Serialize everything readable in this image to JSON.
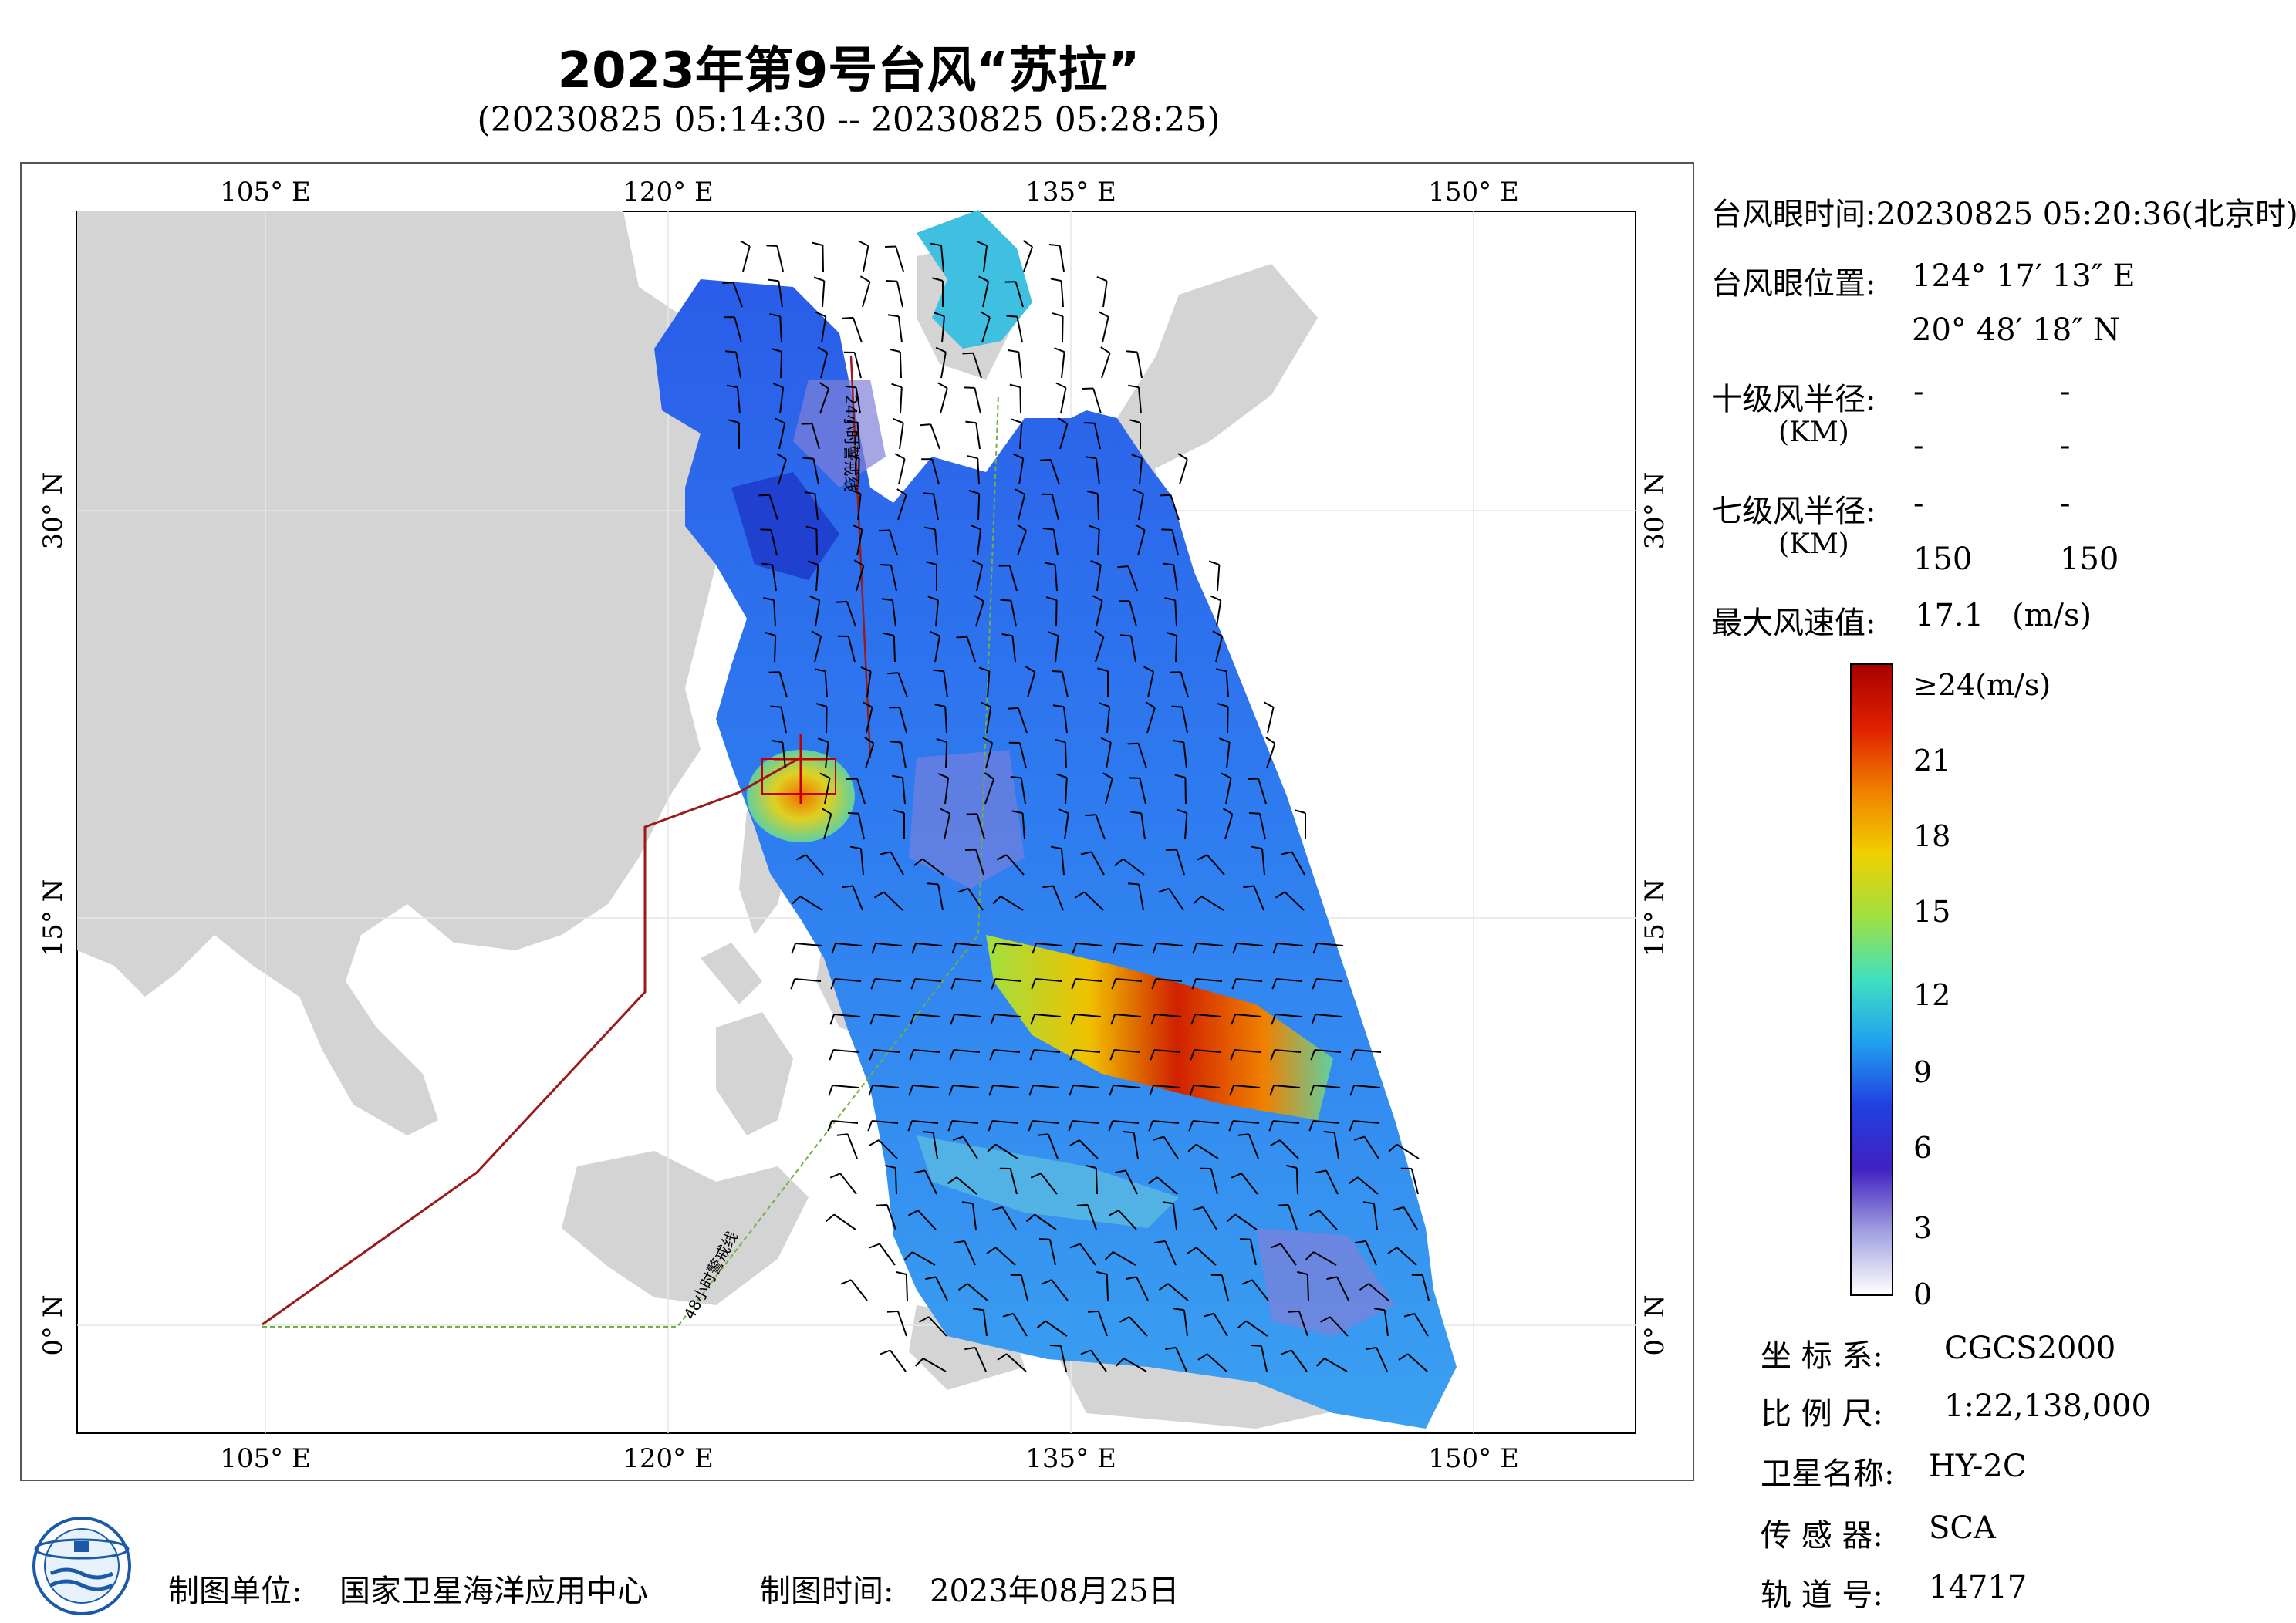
{
  "header": {
    "title": "2023年第9号台风“苏拉”",
    "subtitle": "(20230825 05:14:30 -- 20230825 05:28:25)"
  },
  "map": {
    "lon_labels": [
      "105° E",
      "120° E",
      "135° E",
      "150° E"
    ],
    "lat_labels": [
      "30° N",
      "15° N",
      "0° N"
    ],
    "line_24h": "24小时警戒线",
    "line_48h": "48小时警戒线"
  },
  "info": {
    "eye_time": "台风眼时间:20230825 05:20:36(北京时)",
    "eye_pos_label": "台风眼位置:",
    "eye_lon": "124° 17′ 13″ E",
    "eye_lat": "20° 48′ 18″ N",
    "r10_label": "十级风半径:",
    "r10_unit": "(KM)",
    "r10_values": [
      "-",
      "-",
      "-",
      "-"
    ],
    "r7_label": "七级风半径:",
    "r7_unit": "(KM)",
    "r7_values": [
      "-",
      "-",
      "150",
      "150"
    ],
    "max_wind_label": "最大风速值:",
    "max_wind_value": "17.1",
    "max_wind_unit": "(m/s)"
  },
  "colorbar": {
    "labels": [
      "≥24(m/s)",
      "21",
      "18",
      "15",
      "12",
      "9",
      "6",
      "3",
      "0"
    ],
    "colors": [
      "#a80000",
      "#e02000",
      "#f08000",
      "#f0d000",
      "#a0e040",
      "#40e0c0",
      "#20a0f0",
      "#2040e0",
      "#4020c0",
      "#a0a0e0",
      "#ffffff"
    ]
  },
  "meta": {
    "coord_label": "坐 标 系:",
    "coord_value": "CGCS2000",
    "scale_label": "比 例 尺:",
    "scale_value": "1:22,138,000",
    "sat_label": "卫星名称:",
    "sat_value": "HY-2C",
    "sensor_label": "传 感 器:",
    "sensor_value": "SCA",
    "orbit_label": "轨 道 号:",
    "orbit_value": "14717"
  },
  "footer": {
    "org_label": "制图单位:",
    "org_value": "国家卫星海洋应用中心",
    "date_label": "制图时间:",
    "date_value": "2023年08月25日"
  }
}
